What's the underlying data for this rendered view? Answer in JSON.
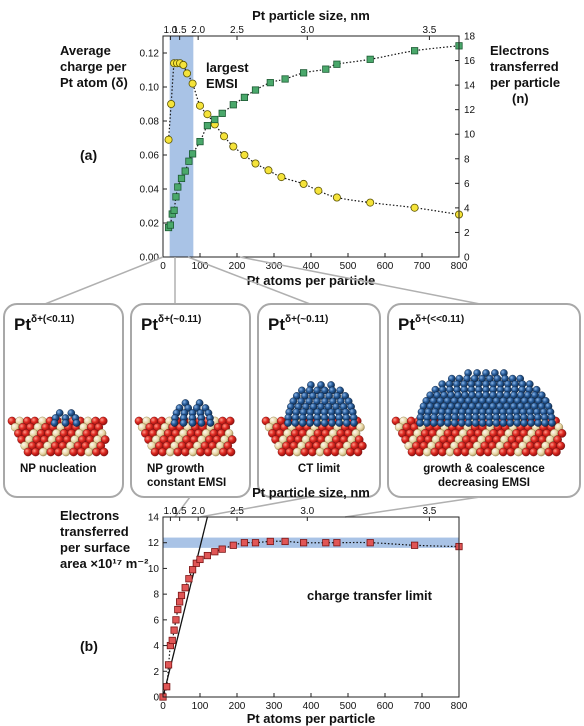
{
  "chart_data": [
    {
      "type": "scatter",
      "panel_label": "(a)",
      "top_axis_label": "Pt particle size, nm",
      "top_ticks": [
        "1.0",
        "1.5",
        "2.0",
        "2.5",
        "3.0",
        "3.5"
      ],
      "top_tick_atoms": [
        20,
        45,
        95,
        200,
        390,
        720
      ],
      "xlabel": "Pt atoms per particle",
      "xlim": [
        0,
        800
      ],
      "xticks": [
        0,
        100,
        200,
        300,
        400,
        500,
        600,
        700,
        800
      ],
      "ylabel_left": "Average charge per Pt atom (δ)",
      "ylabel_left_lines": [
        "Average",
        "charge per",
        "Pt atom (δ)"
      ],
      "ylim_left": [
        0,
        0.13
      ],
      "yticks_left": [
        "0.00",
        "0.02",
        "0.04",
        "0.06",
        "0.08",
        "0.10",
        "0.12"
      ],
      "ylabel_right": "Electrons transferred per particle (n)",
      "ylabel_right_lines": [
        "Electrons",
        "transferred",
        "per particle",
        "(n)"
      ],
      "ylim_right": [
        0,
        18
      ],
      "yticks_right": [
        0,
        2,
        4,
        6,
        8,
        10,
        12,
        14,
        16,
        18
      ],
      "shaded_region": {
        "x": [
          18,
          82
        ],
        "label_lines": [
          "largest",
          "EMSI"
        ],
        "color": "#a9c3e6"
      },
      "series": [
        {
          "axis": "left",
          "marker": "circle",
          "color": "#f5e33a",
          "x": [
            15,
            22,
            30,
            38,
            46,
            55,
            65,
            80,
            100,
            120,
            140,
            165,
            190,
            220,
            250,
            285,
            320,
            380,
            420,
            470,
            560,
            680,
            800
          ],
          "y": [
            0.069,
            0.09,
            0.114,
            0.114,
            0.114,
            0.113,
            0.108,
            0.102,
            0.089,
            0.084,
            0.078,
            0.071,
            0.065,
            0.06,
            0.055,
            0.051,
            0.047,
            0.043,
            0.039,
            0.035,
            0.032,
            0.029,
            0.025
          ]
        },
        {
          "axis": "right",
          "marker": "square",
          "color": "#4aa86b",
          "x": [
            15,
            20,
            25,
            30,
            35,
            40,
            50,
            60,
            70,
            80,
            100,
            120,
            140,
            160,
            190,
            220,
            250,
            290,
            330,
            380,
            440,
            470,
            560,
            680,
            800
          ],
          "y": [
            2.4,
            2.6,
            3.5,
            3.8,
            4.9,
            5.7,
            6.4,
            7.0,
            7.8,
            8.4,
            9.4,
            10.7,
            11.2,
            11.7,
            12.4,
            13.0,
            13.6,
            14.2,
            14.5,
            15.0,
            15.3,
            15.7,
            16.1,
            16.8,
            17.2
          ]
        }
      ]
    },
    {
      "type": "scatter",
      "panel_label": "(b)",
      "top_axis_label": "Pt particle size, nm",
      "top_ticks": [
        "1.0",
        "1.5",
        "2.0",
        "2.5",
        "3.0",
        "3.5"
      ],
      "top_tick_atoms": [
        20,
        45,
        95,
        200,
        390,
        720
      ],
      "xlabel": "Pt atoms per particle",
      "xlim": [
        0,
        800
      ],
      "xticks": [
        0,
        100,
        200,
        300,
        400,
        500,
        600,
        700,
        800
      ],
      "ylabel_lines": [
        "Electrons",
        "transferred",
        "per surface",
        "area ×10¹⁷ m⁻²"
      ],
      "ylim": [
        0,
        14
      ],
      "yticks": [
        0,
        2,
        4,
        6,
        8,
        10,
        12,
        14
      ],
      "band": {
        "y": [
          11.6,
          12.4
        ],
        "label": "charge transfer limit",
        "color": "#a9c3e6"
      },
      "linear_fit": {
        "x": [
          0,
          120
        ],
        "y": [
          0,
          14
        ]
      },
      "series": [
        {
          "marker": "square",
          "color": "#e05656",
          "x": [
            0,
            10,
            15,
            20,
            25,
            30,
            35,
            40,
            45,
            50,
            60,
            70,
            80,
            90,
            100,
            120,
            140,
            160,
            190,
            220,
            250,
            290,
            330,
            380,
            440,
            470,
            560,
            680,
            800
          ],
          "y": [
            0.0,
            0.8,
            2.5,
            4.0,
            4.4,
            5.2,
            6.0,
            6.8,
            7.4,
            7.9,
            8.5,
            9.2,
            9.9,
            10.4,
            10.7,
            11.0,
            11.3,
            11.5,
            11.8,
            12.0,
            12.0,
            12.1,
            12.1,
            12.0,
            12.0,
            12.0,
            12.0,
            11.8,
            11.7
          ]
        }
      ]
    }
  ],
  "cards": [
    {
      "pt": "Pt",
      "sup": "δ+(<0.11)",
      "lines": [
        "NP nucleation"
      ],
      "dome": "small"
    },
    {
      "pt": "Pt",
      "sup": "δ+(~0.11)",
      "lines": [
        "NP growth",
        "constant EMSI"
      ],
      "dome": "medium"
    },
    {
      "pt": "Pt",
      "sup": "δ+(~0.11)",
      "lines": [
        "CT limit"
      ],
      "dome": "large"
    },
    {
      "pt": "Pt",
      "sup": "δ+(<<0.11)",
      "lines": [
        "growth & coalescence",
        "decreasing EMSI"
      ],
      "dome": "xlarge"
    }
  ],
  "colors": {
    "oxide_red": "#d42828",
    "oxide_tan": "#e4d3a4",
    "pt_blue": "#1f4f86"
  }
}
